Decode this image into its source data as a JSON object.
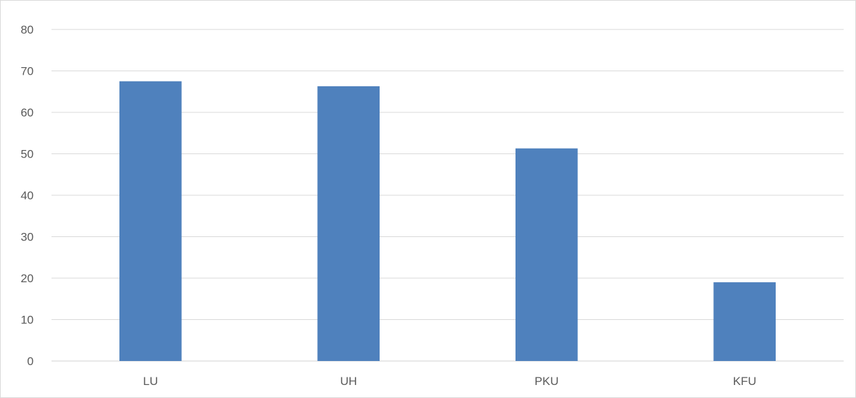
{
  "chart_data": {
    "type": "bar",
    "title": "",
    "xlabel": "",
    "ylabel": "",
    "categories": [
      "LU",
      "UH",
      "PKU",
      "KFU"
    ],
    "values": [
      67.5,
      66.3,
      51.3,
      19
    ],
    "ylim": [
      0,
      80
    ],
    "yticks": [
      "0",
      "10",
      "20",
      "30",
      "40",
      "50",
      "60",
      "70",
      "80"
    ],
    "grid": true,
    "legend": "none",
    "bar_color": "#4f81bd",
    "grid_color": "#d9d9d9",
    "text_color": "#595959"
  }
}
